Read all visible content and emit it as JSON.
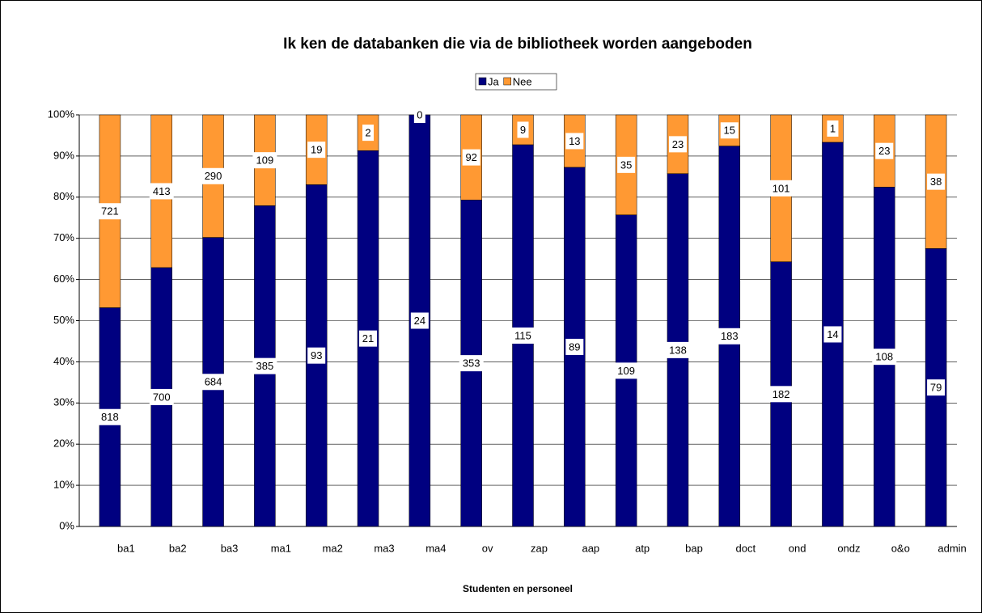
{
  "chart_data": {
    "type": "bar",
    "stacked": "percent",
    "title": "Ik ken de databanken die via de bibliotheek worden aangeboden",
    "x_label": "Studenten en personeel",
    "categories": [
      "ba1",
      "ba2",
      "ba3",
      "ma1",
      "ma2",
      "ma3",
      "ma4",
      "ov",
      "zap",
      "aap",
      "atp",
      "bap",
      "doct",
      "ond",
      "ondz",
      "o&o",
      "admin"
    ],
    "series": [
      {
        "name": "Ja",
        "color": "#000080",
        "values": [
          818,
          700,
          684,
          385,
          93,
          21,
          24,
          353,
          115,
          89,
          109,
          138,
          183,
          182,
          14,
          108,
          79
        ]
      },
      {
        "name": "Nee",
        "color": "#ff9933",
        "values": [
          721,
          413,
          290,
          109,
          19,
          2,
          0,
          92,
          9,
          13,
          35,
          23,
          15,
          101,
          1,
          23,
          38
        ]
      }
    ],
    "ylim": [
      0,
      100
    ],
    "yticks": [
      {
        "value": 0,
        "label": "0%"
      },
      {
        "value": 10,
        "label": "10%"
      },
      {
        "value": 20,
        "label": "20%"
      },
      {
        "value": 30,
        "label": "30%"
      },
      {
        "value": 40,
        "label": "40%"
      },
      {
        "value": 50,
        "label": "50%"
      },
      {
        "value": 60,
        "label": "60%"
      },
      {
        "value": 70,
        "label": "70%"
      },
      {
        "value": 80,
        "label": "80%"
      },
      {
        "value": 90,
        "label": "90%"
      },
      {
        "value": 100,
        "label": "100%"
      }
    ],
    "grid": true,
    "legend": "top"
  }
}
